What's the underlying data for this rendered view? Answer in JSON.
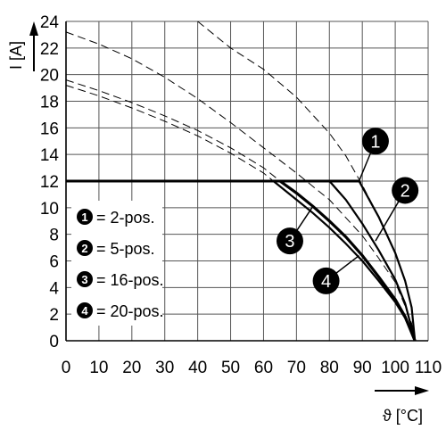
{
  "chart_data": {
    "type": "line",
    "xlabel": "ϑ [°C]",
    "ylabel": "I [A]",
    "xlim": [
      0,
      110
    ],
    "ylim": [
      0,
      24
    ],
    "x_ticks": [
      0,
      10,
      20,
      30,
      40,
      50,
      60,
      70,
      80,
      90,
      100,
      110
    ],
    "y_ticks": [
      0,
      2,
      4,
      6,
      8,
      10,
      12,
      14,
      16,
      18,
      20,
      22,
      24
    ],
    "grid": true,
    "legend_position": "left",
    "legend": [
      {
        "marker": "1",
        "label": "= 2-pos."
      },
      {
        "marker": "2",
        "label": "= 5-pos."
      },
      {
        "marker": "3",
        "label": "= 16-pos."
      },
      {
        "marker": "4",
        "label": "= 20-pos."
      }
    ],
    "current_limit": 12,
    "series": [
      {
        "marker": "1",
        "dashed": [
          [
            40,
            24
          ],
          [
            50,
            22
          ],
          [
            60,
            20.4
          ],
          [
            70,
            18.3
          ],
          [
            80,
            15.6
          ],
          [
            85,
            13.9
          ],
          [
            90,
            11.7
          ],
          [
            95,
            9.3
          ],
          [
            100,
            6.6
          ],
          [
            103,
            4.5
          ],
          [
            105,
            2.5
          ],
          [
            106,
            0
          ]
        ],
        "solid": [
          [
            89,
            12
          ],
          [
            95,
            9.3
          ],
          [
            100,
            6.6
          ],
          [
            103,
            4.5
          ],
          [
            105,
            2.5
          ],
          [
            106,
            0
          ]
        ]
      },
      {
        "marker": "2",
        "dashed": [
          [
            0,
            23.2
          ],
          [
            10,
            22.3
          ],
          [
            20,
            21.2
          ],
          [
            30,
            19.8
          ],
          [
            40,
            18.2
          ],
          [
            50,
            16.4
          ],
          [
            60,
            14.5
          ],
          [
            70,
            12.6
          ],
          [
            75,
            11.6
          ],
          [
            80,
            10.6
          ],
          [
            90,
            7.9
          ],
          [
            95,
            6.2
          ],
          [
            100,
            4.4
          ],
          [
            103,
            2.6
          ],
          [
            105,
            1.3
          ],
          [
            106,
            0
          ]
        ],
        "solid": [
          [
            80,
            12
          ],
          [
            85,
            10.6
          ],
          [
            90,
            8.8
          ],
          [
            95,
            6.8
          ],
          [
            100,
            4.6
          ],
          [
            103,
            2.8
          ],
          [
            106,
            0
          ]
        ]
      },
      {
        "marker": "3",
        "dashed": [
          [
            0,
            19.6
          ],
          [
            10,
            18.8
          ],
          [
            20,
            17.9
          ],
          [
            30,
            16.9
          ],
          [
            40,
            15.8
          ],
          [
            50,
            14.5
          ],
          [
            60,
            13
          ],
          [
            65,
            12
          ]
        ],
        "solid": [
          [
            65,
            12
          ],
          [
            70,
            11.1
          ],
          [
            75,
            10.1
          ],
          [
            80,
            9
          ],
          [
            85,
            7.8
          ],
          [
            90,
            6.4
          ],
          [
            95,
            4.8
          ],
          [
            100,
            3.1
          ],
          [
            103,
            1.8
          ],
          [
            106,
            0
          ]
        ]
      },
      {
        "marker": "4",
        "dashed": [
          [
            0,
            19.2
          ],
          [
            10,
            18.4
          ],
          [
            20,
            17.5
          ],
          [
            30,
            16.5
          ],
          [
            40,
            15.4
          ],
          [
            50,
            14.1
          ],
          [
            60,
            12.6
          ],
          [
            63,
            12
          ]
        ],
        "solid": [
          [
            63,
            12
          ],
          [
            70,
            10.6
          ],
          [
            75,
            9.6
          ],
          [
            80,
            8.5
          ],
          [
            85,
            7.3
          ],
          [
            90,
            6
          ],
          [
            95,
            4.5
          ],
          [
            100,
            2.9
          ],
          [
            103,
            1.7
          ],
          [
            106,
            0
          ]
        ]
      }
    ],
    "callouts": [
      {
        "marker": "1",
        "x": 94,
        "y": 15,
        "points_to": [
          89,
          12
        ]
      },
      {
        "marker": "2",
        "x": 103,
        "y": 11.3,
        "points_to": [
          94,
          7.5
        ]
      },
      {
        "marker": "3",
        "x": 68,
        "y": 7.5,
        "points_to": [
          75,
          10.1
        ]
      },
      {
        "marker": "4",
        "x": 79,
        "y": 4.5,
        "points_to": [
          89,
          6.4
        ]
      }
    ]
  }
}
